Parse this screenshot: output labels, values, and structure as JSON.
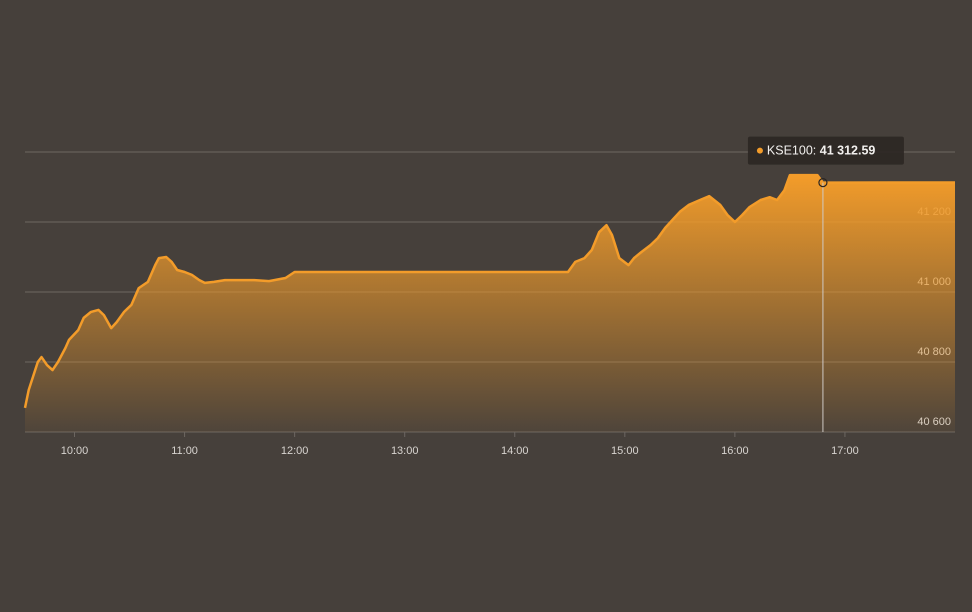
{
  "chart_data": {
    "type": "area",
    "x": [
      "09:33",
      "09:35",
      "09:40",
      "09:42",
      "09:45",
      "09:48",
      "09:51",
      "09:55",
      "09:57",
      "10:02",
      "10:05",
      "10:09",
      "10:13",
      "10:16",
      "10:20",
      "10:23",
      "10:27",
      "10:31",
      "10:35",
      "10:40",
      "10:44",
      "10:46",
      "10:50",
      "10:53",
      "10:56",
      "11:00",
      "11:04",
      "11:08",
      "11:11",
      "11:16",
      "11:22",
      "11:30",
      "11:38",
      "11:46",
      "11:55",
      "12:00",
      "12:57",
      "14:29",
      "14:33",
      "14:38",
      "14:42",
      "14:46",
      "14:50",
      "14:53",
      "14:57",
      "15:02",
      "15:05",
      "15:09",
      "15:14",
      "15:18",
      "15:22",
      "15:26",
      "15:30",
      "15:35",
      "15:41",
      "15:46",
      "15:52",
      "15:56",
      "16:00",
      "16:04",
      "16:08",
      "16:14",
      "16:19",
      "16:23",
      "16:27",
      "16:30",
      "16:45",
      "16:48",
      "18:00"
    ],
    "series": [
      {
        "name": "KSE100",
        "color": "#f39c2a",
        "values": [
          40669,
          40720,
          40800,
          40814,
          40791,
          40777,
          40800,
          40840,
          40863,
          40891,
          40926,
          40943,
          40949,
          40934,
          40897,
          40914,
          40943,
          40963,
          41011,
          41029,
          41077,
          41097,
          41100,
          41086,
          41063,
          41057,
          41049,
          41034,
          41026,
          41029,
          41034,
          41034,
          41034,
          41031,
          41040,
          41057,
          41057,
          41057,
          41086,
          41097,
          41120,
          41171,
          41191,
          41163,
          41097,
          41077,
          41097,
          41114,
          41134,
          41154,
          41183,
          41206,
          41229,
          41249,
          41263,
          41274,
          41249,
          41220,
          41200,
          41220,
          41243,
          41263,
          41271,
          41263,
          41291,
          41334,
          41334,
          41312.59,
          41313
        ]
      }
    ],
    "xlim": [
      "09:33",
      "18:00"
    ],
    "xticks": [
      "10:00",
      "11:00",
      "12:00",
      "13:00",
      "14:00",
      "15:00",
      "16:00",
      "17:00"
    ],
    "ylim": [
      40600,
      41400
    ],
    "yticks": [
      {
        "value": 40600,
        "label": "40 600"
      },
      {
        "value": 40800,
        "label": "40 800"
      },
      {
        "value": 41000,
        "label": "41 000"
      },
      {
        "value": 41200,
        "label": "41 200"
      }
    ],
    "grid": true,
    "tooltip": {
      "x": "16:48",
      "value": 41312.59,
      "value_label": "41 312.59"
    }
  }
}
